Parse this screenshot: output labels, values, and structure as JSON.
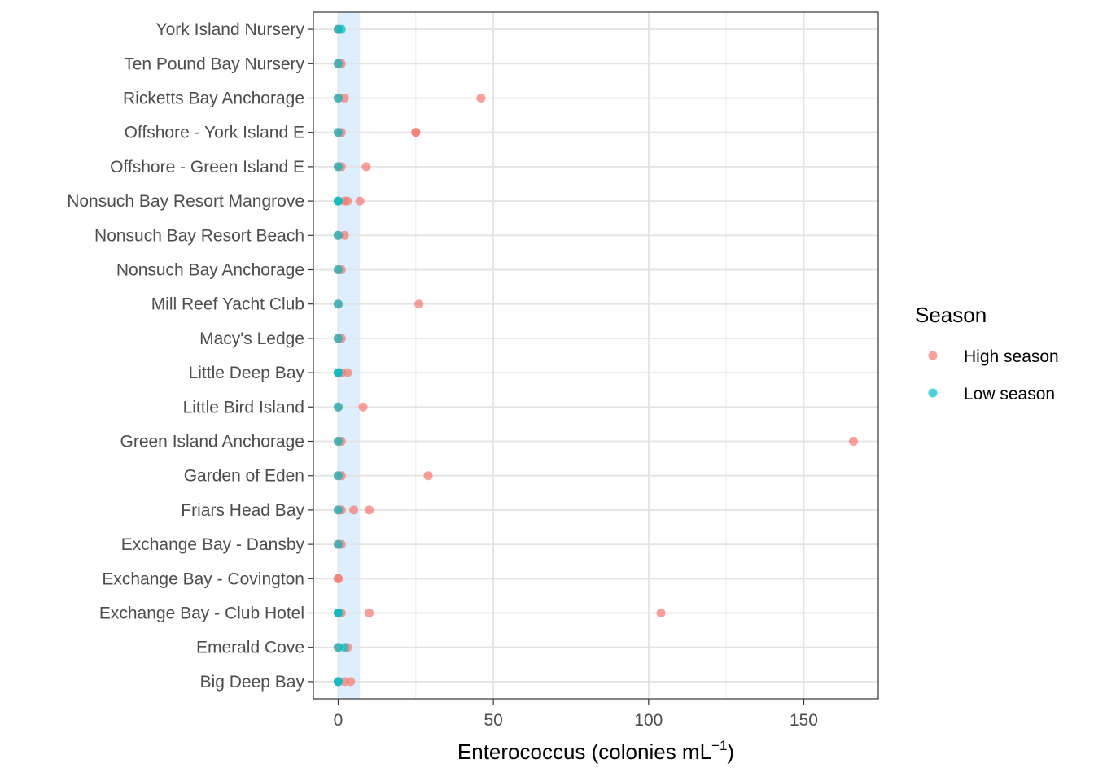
{
  "chart_data": {
    "type": "scatter",
    "xlabel": "Enterococcus (colonies mL",
    "xlabel_sup": "−1",
    "xlabel_close": ")",
    "xlim": [
      -8,
      174
    ],
    "xticks": [
      0,
      50,
      100,
      150
    ],
    "x_minor_gridlines": [
      25,
      75,
      125
    ],
    "threshold_band": [
      0,
      7
    ],
    "threshold_band_color": "#ddeeff",
    "grid": true,
    "legend_position": "right",
    "legend_title": "Season",
    "categories": [
      "York Island Nursery",
      "Ten Pound Bay Nursery",
      "Ricketts Bay Anchorage",
      "Offshore - York Island E",
      "Offshore - Green Island E",
      "Nonsuch Bay Resort Mangrove",
      "Nonsuch Bay Resort Beach",
      "Nonsuch Bay Anchorage",
      "Mill Reef Yacht Club",
      "Macy's Ledge",
      "Little Deep Bay",
      "Little Bird Island",
      "Green Island Anchorage",
      "Garden of Eden",
      "Friars Head Bay",
      "Exchange Bay - Dansby",
      "Exchange Bay - Covington",
      "Exchange Bay - Club Hotel",
      "Emerald Cove",
      "Big Deep Bay"
    ],
    "series": [
      {
        "name": "High season",
        "color": "#f8766d",
        "points": [
          {
            "site": "York Island Nursery",
            "values": [
              0,
              0
            ]
          },
          {
            "site": "Ten Pound Bay Nursery",
            "values": [
              0,
              1
            ]
          },
          {
            "site": "Ricketts Bay Anchorage",
            "values": [
              0,
              2,
              46
            ]
          },
          {
            "site": "Offshore - York Island E",
            "values": [
              0,
              1,
              25,
              25
            ]
          },
          {
            "site": "Offshore - Green Island E",
            "values": [
              0,
              1,
              9
            ]
          },
          {
            "site": "Nonsuch Bay Resort Mangrove",
            "values": [
              0,
              2,
              3,
              7
            ]
          },
          {
            "site": "Nonsuch Bay Resort Beach",
            "values": [
              0,
              2
            ]
          },
          {
            "site": "Nonsuch Bay Anchorage",
            "values": [
              0,
              1
            ]
          },
          {
            "site": "Mill Reef Yacht Club",
            "values": [
              0,
              26
            ]
          },
          {
            "site": "Macy's Ledge",
            "values": [
              0,
              1
            ]
          },
          {
            "site": "Little Deep Bay",
            "values": [
              0,
              1,
              3
            ]
          },
          {
            "site": "Little Bird Island",
            "values": [
              0,
              8
            ]
          },
          {
            "site": "Green Island Anchorage",
            "values": [
              0,
              1,
              166
            ]
          },
          {
            "site": "Garden of Eden",
            "values": [
              0,
              1,
              29
            ]
          },
          {
            "site": "Friars Head Bay",
            "values": [
              0,
              1,
              5,
              10
            ]
          },
          {
            "site": "Exchange Bay - Dansby",
            "values": [
              0,
              1
            ]
          },
          {
            "site": "Exchange Bay - Covington",
            "values": [
              0,
              0
            ]
          },
          {
            "site": "Exchange Bay - Club Hotel",
            "values": [
              0,
              1,
              10,
              104
            ]
          },
          {
            "site": "Emerald Cove",
            "values": [
              0,
              3
            ]
          },
          {
            "site": "Big Deep Bay",
            "values": [
              0,
              2,
              4
            ]
          }
        ]
      },
      {
        "name": "Low season",
        "color": "#00bfc4",
        "points": [
          {
            "site": "York Island Nursery",
            "values": [
              0,
              1
            ]
          },
          {
            "site": "Ten Pound Bay Nursery",
            "values": [
              0
            ]
          },
          {
            "site": "Ricketts Bay Anchorage",
            "values": [
              0
            ]
          },
          {
            "site": "Offshore - York Island E",
            "values": [
              0
            ]
          },
          {
            "site": "Offshore - Green Island E",
            "values": [
              0
            ]
          },
          {
            "site": "Nonsuch Bay Resort Mangrove",
            "values": [
              0,
              0
            ]
          },
          {
            "site": "Nonsuch Bay Resort Beach",
            "values": [
              0
            ]
          },
          {
            "site": "Nonsuch Bay Anchorage",
            "values": [
              0
            ]
          },
          {
            "site": "Mill Reef Yacht Club",
            "values": [
              0
            ]
          },
          {
            "site": "Macy's Ledge",
            "values": [
              0
            ]
          },
          {
            "site": "Little Deep Bay",
            "values": [
              0,
              0
            ]
          },
          {
            "site": "Little Bird Island",
            "values": [
              0
            ]
          },
          {
            "site": "Green Island Anchorage",
            "values": [
              0
            ]
          },
          {
            "site": "Garden of Eden",
            "values": [
              0
            ]
          },
          {
            "site": "Friars Head Bay",
            "values": [
              0
            ]
          },
          {
            "site": "Exchange Bay - Dansby",
            "values": [
              0
            ]
          },
          {
            "site": "Exchange Bay - Covington",
            "values": []
          },
          {
            "site": "Exchange Bay - Club Hotel",
            "values": [
              0,
              0
            ]
          },
          {
            "site": "Emerald Cove",
            "values": [
              0,
              2
            ]
          },
          {
            "site": "Big Deep Bay",
            "values": [
              0,
              0
            ]
          }
        ]
      }
    ]
  }
}
